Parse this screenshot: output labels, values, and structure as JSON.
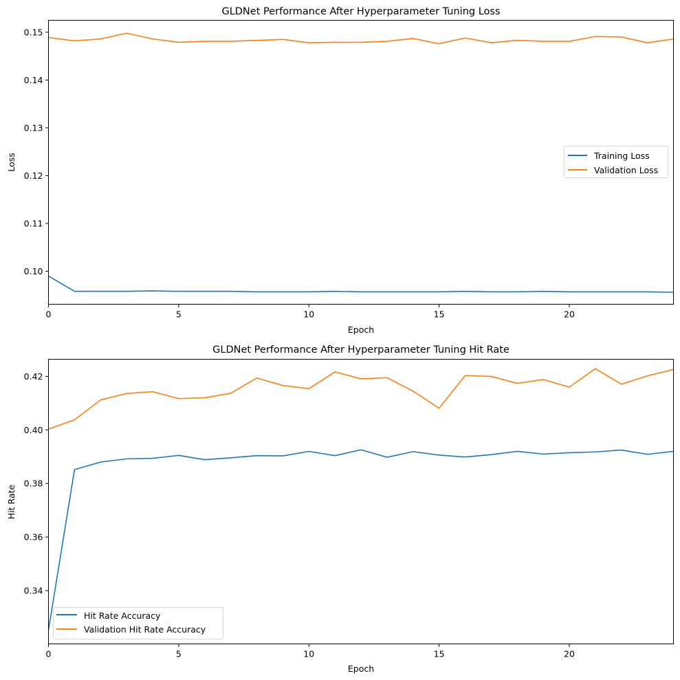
{
  "chart_data": [
    {
      "type": "line",
      "title": "GLDNet Performance After Hyperparameter Tuning Loss",
      "xlabel": "Epoch",
      "ylabel": "Loss",
      "xlim": [
        0,
        24
      ],
      "ylim": [
        0.0931,
        0.1525
      ],
      "grid": false,
      "legend_placement": "center-right",
      "x_ticks": [
        0,
        5,
        10,
        15,
        20
      ],
      "x_tick_labels": [
        "0",
        "5",
        "10",
        "15",
        "20"
      ],
      "y_ticks": [
        0.1,
        0.11,
        0.12,
        0.13,
        0.14,
        0.15
      ],
      "y_tick_labels": [
        "0.10",
        "0.11",
        "0.12",
        "0.13",
        "0.14",
        "0.15"
      ],
      "x": [
        0,
        1,
        2,
        3,
        4,
        5,
        6,
        7,
        8,
        9,
        10,
        11,
        12,
        13,
        14,
        15,
        16,
        17,
        18,
        19,
        20,
        21,
        22,
        23,
        24
      ],
      "series": [
        {
          "name": "Training Loss",
          "color": "#1f77b4",
          "values": [
            0.099,
            0.0958,
            0.0958,
            0.0958,
            0.0959,
            0.0958,
            0.0958,
            0.0958,
            0.0957,
            0.0957,
            0.0957,
            0.0958,
            0.0957,
            0.0957,
            0.0957,
            0.0957,
            0.0958,
            0.0957,
            0.0957,
            0.0958,
            0.0957,
            0.0957,
            0.0957,
            0.0957,
            0.0956
          ]
        },
        {
          "name": "Validation Loss",
          "color": "#ff7f0e",
          "values": [
            0.1489,
            0.1482,
            0.1486,
            0.1498,
            0.1486,
            0.1479,
            0.1481,
            0.1481,
            0.1483,
            0.1485,
            0.1478,
            0.1479,
            0.1479,
            0.1481,
            0.1487,
            0.1476,
            0.1488,
            0.1478,
            0.1483,
            0.1481,
            0.1481,
            0.1491,
            0.149,
            0.1478,
            0.1486
          ]
        }
      ]
    },
    {
      "type": "line",
      "title": "GLDNet Performance After Hyperparameter Tuning Hit Rate",
      "xlabel": "Epoch",
      "ylabel": "Hit Rate",
      "xlim": [
        0,
        24
      ],
      "ylim": [
        0.3201,
        0.4264
      ],
      "grid": false,
      "legend_placement": "lower-left",
      "x_ticks": [
        0,
        5,
        10,
        15,
        20
      ],
      "x_tick_labels": [
        "0",
        "5",
        "10",
        "15",
        "20"
      ],
      "y_ticks": [
        0.34,
        0.36,
        0.38,
        0.4,
        0.42
      ],
      "y_tick_labels": [
        "0.34",
        "0.36",
        "0.38",
        "0.40",
        "0.42"
      ],
      "x": [
        0,
        1,
        2,
        3,
        4,
        5,
        6,
        7,
        8,
        9,
        10,
        11,
        12,
        13,
        14,
        15,
        16,
        17,
        18,
        19,
        20,
        21,
        22,
        23,
        24
      ],
      "series": [
        {
          "name": "Hit Rate Accuracy",
          "color": "#1f77b4",
          "values": [
            0.3253,
            0.3852,
            0.388,
            0.3892,
            0.3894,
            0.3905,
            0.3889,
            0.3896,
            0.3904,
            0.3903,
            0.392,
            0.3904,
            0.3926,
            0.3898,
            0.3919,
            0.3906,
            0.3899,
            0.3908,
            0.392,
            0.391,
            0.3915,
            0.3918,
            0.3925,
            0.3909,
            0.392
          ]
        },
        {
          "name": "Validation Hit Rate Accuracy",
          "color": "#ff7f0e",
          "values": [
            0.4003,
            0.4038,
            0.4112,
            0.4136,
            0.4143,
            0.4117,
            0.412,
            0.4137,
            0.4194,
            0.4166,
            0.4154,
            0.4217,
            0.4191,
            0.4195,
            0.4145,
            0.4081,
            0.4203,
            0.42,
            0.4174,
            0.4188,
            0.416,
            0.4229,
            0.4171,
            0.4202,
            0.4226
          ]
        }
      ]
    }
  ]
}
